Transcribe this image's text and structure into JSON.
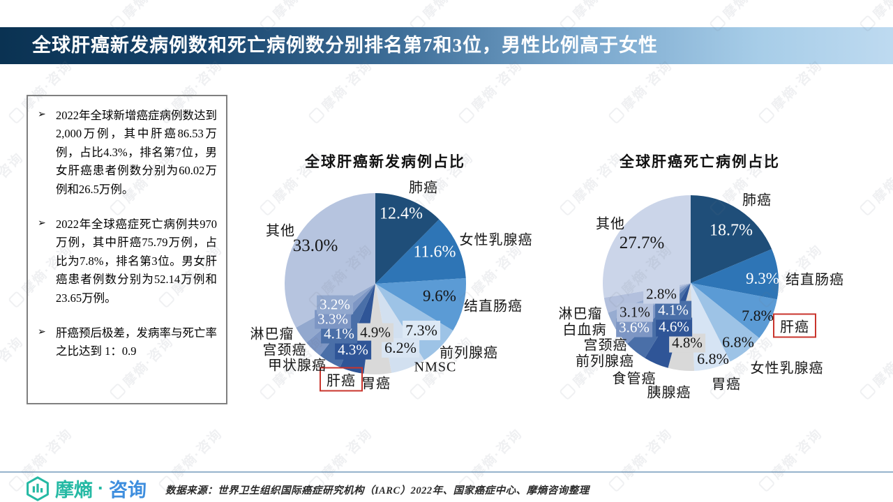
{
  "header": {
    "title": "全球肝癌新发病例数和死亡病例数分别排名第7和3位，男性比例高于女性"
  },
  "list": {
    "marker": "➢",
    "items": [
      {
        "text": "2022年全球新增癌症病例数达到2,000万例，其中肝癌86.53万例，占比4.3%，排名第7位，男女肝癌患者例数分别为60.02万例和26.5万例。"
      },
      {
        "text": "2022年全球癌症死亡病例共970万例，其中肝癌75.79万例，占比为7.8%，排名第3位。男女肝癌患者例数分别为52.14万例和23.65万例。"
      },
      {
        "text": "肝癌预后极差，发病率与死亡率之比达到 1：0.9"
      }
    ]
  },
  "chart_data": [
    {
      "type": "pie",
      "title": "全球肝癌新发病例占比",
      "highlighted_label": "肝癌",
      "slices": [
        {
          "label": "肺癌",
          "value": 12.4,
          "value_text": "12.4%",
          "color": "#1F4E79"
        },
        {
          "label": "女性乳腺癌",
          "value": 11.6,
          "value_text": "11.6%",
          "color": "#2E75B6"
        },
        {
          "label": "结直肠癌",
          "value": 9.6,
          "value_text": "9.6%",
          "color": "#5B9BD5"
        },
        {
          "label": "前列腺癌",
          "value": 7.3,
          "value_text": "7.3%",
          "color": "#9DC3E6"
        },
        {
          "label": "NMSC",
          "value": 6.2,
          "value_text": "6.2%",
          "color": "#D2E0F0"
        },
        {
          "label": "胃癌",
          "value": 4.9,
          "value_text": "4.9%",
          "color": "#D9D9D9"
        },
        {
          "label": "肝癌",
          "value": 4.3,
          "value_text": "4.3%",
          "color": "#2F5597",
          "highlighted": true
        },
        {
          "label": "甲状腺癌",
          "value": 4.1,
          "value_text": "4.1%",
          "color": "#4A6FA8"
        },
        {
          "label": "宫颈癌",
          "value": 3.3,
          "value_text": "3.3%",
          "color": "#7D96C4"
        },
        {
          "label": "淋巴瘤",
          "value": 3.2,
          "value_text": "3.2%",
          "color": "#92A8CE"
        },
        {
          "label": "其他",
          "value": 33.0,
          "value_text": "33.0%",
          "color": "#B6C4DF"
        }
      ]
    },
    {
      "type": "pie",
      "title": "全球肝癌死亡病例占比",
      "highlighted_label": "肝癌",
      "slices": [
        {
          "label": "肺癌",
          "value": 18.7,
          "value_text": "18.7%",
          "color": "#1F4E79"
        },
        {
          "label": "结直肠癌",
          "value": 9.3,
          "value_text": "9.3%",
          "color": "#2E75B6"
        },
        {
          "label": "肝癌",
          "value": 7.8,
          "value_text": "7.8%",
          "color": "#5B9BD5",
          "highlighted": true
        },
        {
          "label": "女性乳腺癌",
          "value": 6.8,
          "value_text": "6.8%",
          "color": "#9DC3E6"
        },
        {
          "label": "胃癌",
          "value": 6.8,
          "value_text": "6.8%",
          "color": "#D6E4F4"
        },
        {
          "label": "胰腺癌",
          "value": 4.8,
          "value_text": "4.8%",
          "color": "#D9D9D9"
        },
        {
          "label": "食管癌",
          "value": 4.6,
          "value_text": "4.6%",
          "color": "#2F5597"
        },
        {
          "label": "前列腺癌",
          "value": 4.1,
          "value_text": "4.1%",
          "color": "#4A6FA8"
        },
        {
          "label": "宫颈癌",
          "value": 3.6,
          "value_text": "3.6%",
          "color": "#7D96C4"
        },
        {
          "label": "白血病",
          "value": 3.1,
          "value_text": "3.1%",
          "color": "#97ACD1"
        },
        {
          "label": "淋巴瘤",
          "value": 2.8,
          "value_text": "2.8%",
          "color": "#B3C0DD"
        },
        {
          "label": "其他",
          "value": 27.7,
          "value_text": "27.7%",
          "color": "#CBD5E9"
        }
      ]
    }
  ],
  "footer": {
    "brand_primary": "摩熵",
    "brand_dot": "·",
    "brand_secondary": "咨询",
    "source": "数据来源：世界卫生组织国际癌症研究机构（IARC）2022年、国家癌症中心、摩熵咨询整理"
  },
  "watermark": {
    "text": "摩熵·咨询"
  },
  "theme": {
    "titlebar_gradient_start": "#0A3252",
    "titlebar_gradient_end": "#BEDAF0",
    "highlight_box_red": "#C9342C",
    "footer_line": "#96B3CC",
    "logo_teal": "#25B9A4",
    "logo_blue": "#3E8EDE"
  }
}
